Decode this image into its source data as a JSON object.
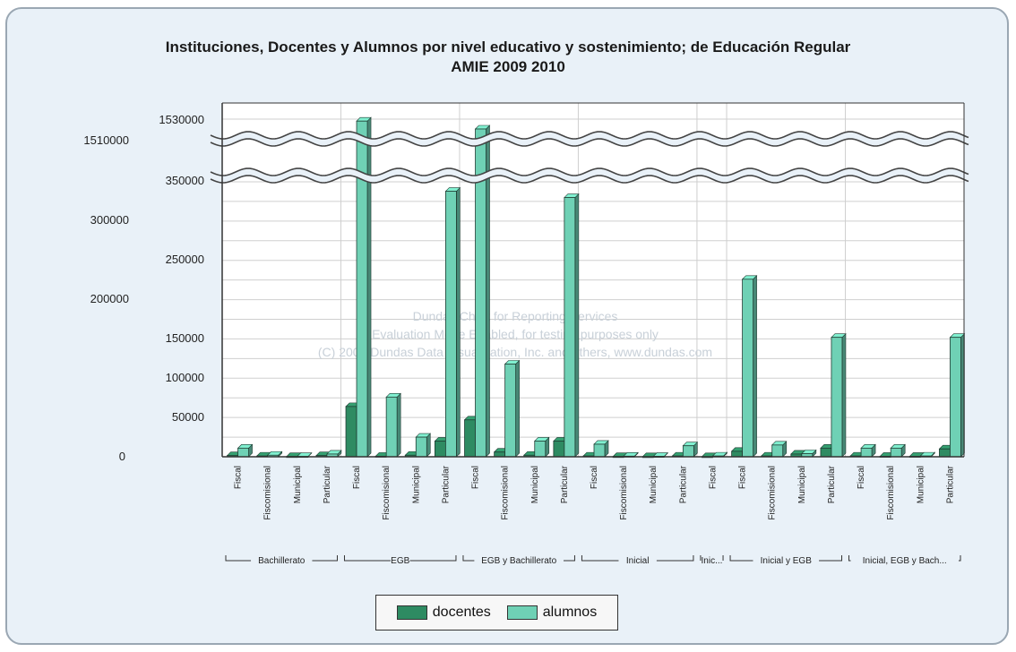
{
  "chart_data": {
    "type": "bar",
    "title": "Instituciones, Docentes y Alumnos por nivel educativo y sostenimiento; de Educación Regular",
    "subtitle": "AMIE 2009 2010",
    "axis_break": "broken y-axis (scale breaks near 350000 and 1510000)",
    "y_ticks": [
      "0",
      "50000",
      "100000",
      "150000",
      "200000",
      "250000",
      "300000",
      "350000",
      "1510000",
      "1530000"
    ],
    "groups": [
      {
        "name": "Bachillerato",
        "categories": [
          "Fiscal",
          "Fiscomisional",
          "Municipal",
          "Particular"
        ]
      },
      {
        "name": "EGB",
        "categories": [
          "Fiscal",
          "Fiscomisional",
          "Municipal",
          "Particular"
        ]
      },
      {
        "name": "EGB y Bachillerato",
        "categories": [
          "Fiscal",
          "Fiscomisional",
          "Municipal",
          "Particular"
        ]
      },
      {
        "name": "Inicial",
        "categories": [
          "Fiscal",
          "Fiscomisional",
          "Municipal",
          "Particular"
        ]
      },
      {
        "name": "Inic...",
        "categories": [
          "Fiscal"
        ]
      },
      {
        "name": "Inicial y EGB",
        "categories": [
          "Fiscal",
          "Fiscomisional",
          "Municipal",
          "Particular"
        ]
      },
      {
        "name": "Inicial, EGB y Bach...",
        "categories": [
          "Fiscal",
          "Fiscomisional",
          "Municipal",
          "Particular"
        ]
      }
    ],
    "series": [
      {
        "name": "docentes",
        "color": "#2e8b62",
        "values": [
          1500,
          1000,
          300,
          1500,
          64000,
          700,
          2000,
          20000,
          47000,
          6000,
          2000,
          20000,
          1000,
          300,
          200,
          1000,
          200,
          7000,
          1000,
          3500,
          11000,
          1000,
          600,
          600,
          10000
        ]
      },
      {
        "name": "alumnos",
        "color": "#6fd1b5",
        "values": [
          11000,
          2000,
          400,
          3500,
          1528000,
          76000,
          25000,
          338000,
          1520000,
          118000,
          20000,
          330000,
          16000,
          800,
          500,
          14000,
          1000,
          226000,
          15000,
          4000,
          152000,
          11000,
          11000,
          1000,
          152000
        ]
      }
    ],
    "watermark": [
      "Dundas Chart for Reporting Services",
      "Evaluation Mode Enabled, for testing purposes only",
      "(C) 2007 Dundas Data Visualization, Inc. and others, www.dundas.com"
    ]
  },
  "legend": {
    "items": [
      {
        "label": "docentes",
        "color": "#2e8b62"
      },
      {
        "label": "alumnos",
        "color": "#6fd1b5"
      }
    ]
  }
}
